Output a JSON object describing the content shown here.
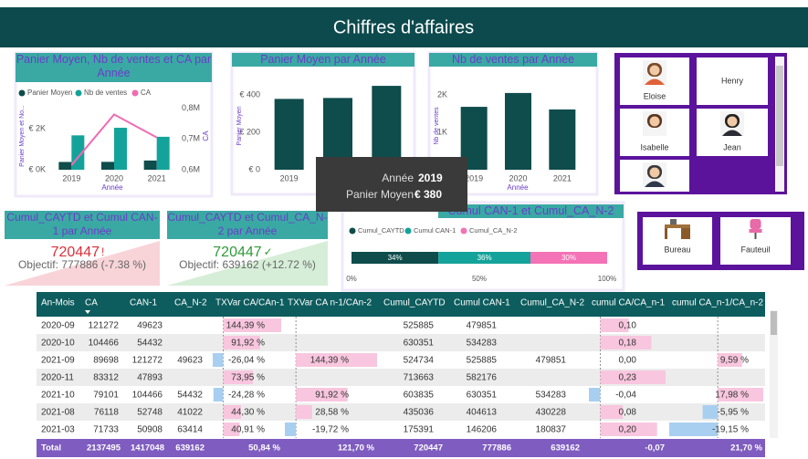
{
  "header": {
    "title": "Chiffres d'affaires"
  },
  "chart_data": [
    {
      "type": "bar",
      "title": "Panier Moyen, Nb de ventes et CA par Année",
      "categories": [
        "2019",
        "2020",
        "2021"
      ],
      "x_label": "Année",
      "y_label": "Panier Moyen et No...",
      "y2_label": "CA",
      "legend": "top-left",
      "grid": false,
      "series": [
        {
          "name": "Panier Moyen",
          "color": "#0f4c4c",
          "values": [
            380,
            385,
            450
          ]
        },
        {
          "name": "Nb de ventes",
          "color": "#14a39a",
          "values": [
            1680,
            2050,
            1610
          ]
        },
        {
          "name": "CA",
          "color": "#f06bb3",
          "type": "line",
          "axis": "y2",
          "values": [
            615000,
            780000,
            705000
          ]
        }
      ],
      "ylim": [
        0,
        3300
      ],
      "yticks": [
        {
          "value": 0,
          "label": "€ 0K"
        },
        {
          "value": 2000,
          "label": "€ 2K"
        }
      ],
      "y2lim": [
        600000,
        820000
      ],
      "y2ticks": [
        {
          "value": 600000,
          "label": "0,6M"
        },
        {
          "value": 700000,
          "label": "0,7M"
        },
        {
          "value": 800000,
          "label": "0,8M"
        }
      ]
    },
    {
      "type": "bar",
      "title": "Panier Moyen par Année",
      "categories": [
        "2019",
        "2020",
        "2021"
      ],
      "x_label": "Année",
      "y_label": "Panier Moyen",
      "grid": false,
      "series": [
        {
          "name": "Panier Moyen",
          "color": "#0f4c4c",
          "values": [
            380,
            385,
            450
          ]
        }
      ],
      "ylim": [
        0,
        470
      ],
      "yticks": [
        {
          "value": 0,
          "label": "€ 0"
        },
        {
          "value": 200,
          "label": "€ 200"
        },
        {
          "value": 400,
          "label": "€ 400"
        }
      ]
    },
    {
      "type": "bar",
      "title": "Nb de ventes par Année",
      "categories": [
        "2019",
        "2020",
        "2021"
      ],
      "x_label": "Année",
      "y_label": "Nb de ventes",
      "grid": false,
      "series": [
        {
          "name": "Nb de ventes",
          "color": "#0f4c4c",
          "values": [
            1680,
            2050,
            1610
          ]
        }
      ],
      "ylim": [
        0,
        2340
      ],
      "yticks": [
        {
          "value": 0,
          "label": "0K"
        },
        {
          "value": 1000,
          "label": "1K"
        },
        {
          "value": 2000,
          "label": "2K"
        }
      ]
    },
    {
      "type": "bar",
      "orientation": "horizontal",
      "stacked": true,
      "title": "Cumul CAN-1 et Cumul_CA_N-2",
      "legend": "top-left",
      "grid": false,
      "series": [
        {
          "name": "Cumul_CAYTD",
          "color": "#0f4c4c",
          "values": [
            34
          ],
          "value_labels": [
            "34%"
          ]
        },
        {
          "name": "Cumul CAN-1",
          "color": "#14a39a",
          "values": [
            36
          ],
          "value_labels": [
            "36%"
          ]
        },
        {
          "name": "Cumul_CA_N-2",
          "color": "#f472b6",
          "values": [
            30
          ],
          "value_labels": [
            "30%"
          ]
        }
      ],
      "xlim": [
        0,
        100
      ],
      "xticks": [
        {
          "value": 0,
          "label": "0%"
        },
        {
          "value": 50,
          "label": "50%"
        },
        {
          "value": 100,
          "label": "100%"
        }
      ]
    }
  ],
  "tooltip": {
    "rows": [
      {
        "label": "Année",
        "value": "2019"
      },
      {
        "label": "Panier Moyen",
        "value": "€ 380"
      }
    ]
  },
  "kpis": [
    {
      "title": "Cumul_CAYTD et Cumul CAN-1 par Année",
      "value": 720447,
      "indicator": "!",
      "goal": "Objectif: 777886 (-7.38 %)",
      "status": "bad"
    },
    {
      "title": "Cumul_CAYTD et Cumul_CA_N-2 par Année",
      "value": 720447,
      "indicator": "✓",
      "goal": "Objectif: 639162 (+12.72 %)",
      "status": "good"
    }
  ],
  "slicer": {
    "items": [
      "Eloise",
      "Henry",
      "Isabelle",
      "Jean"
    ]
  },
  "buttons": [
    "Bureau",
    "Fauteuil"
  ],
  "table": {
    "columns": [
      "An-Mois",
      "CA",
      "CAN-1",
      "CA_N-2",
      "TXVar CA/CAn-1",
      "TXVar CA n-1/CAn-2",
      "Cumul_CAYTD",
      "Cumul CAN-1",
      "Cumul_CA_N-2",
      "cumul CA/CA_n-1",
      "cumul CA_n-1/CA_n-2"
    ],
    "rows": [
      [
        "2020-09",
        121272,
        49623,
        null,
        "144,39 %",
        null,
        525885,
        479851,
        null,
        "0,10",
        null
      ],
      [
        "2020-10",
        104466,
        54432,
        null,
        "91,92 %",
        null,
        630351,
        534283,
        null,
        "0,18",
        null
      ],
      [
        "2021-09",
        89698,
        121272,
        49623,
        "-26,04 %",
        "144,39 %",
        524734,
        525885,
        479851,
        "0,00",
        "9,59 %"
      ],
      [
        "2020-11",
        83312,
        47893,
        null,
        "73,95 %",
        null,
        713663,
        582176,
        null,
        "0,23",
        null
      ],
      [
        "2021-10",
        79101,
        104466,
        54432,
        "-24,28 %",
        "91,92 %",
        603835,
        630351,
        534283,
        "-0,04",
        "17,98 %"
      ],
      [
        "2021-08",
        76118,
        52748,
        41022,
        "44,30 %",
        "28,58 %",
        435036,
        404613,
        430228,
        "0,08",
        "-5,95 %"
      ],
      [
        "2021-03",
        71733,
        50908,
        63414,
        "40,91 %",
        "-19,72 %",
        175391,
        146206,
        180837,
        "0,20",
        "-19,15 %"
      ]
    ],
    "total": [
      "Total",
      2137495,
      1417048,
      639162,
      "50,84 %",
      "121,70 %",
      720447,
      777886,
      639162,
      "-0,07",
      "21,70 %"
    ]
  }
}
